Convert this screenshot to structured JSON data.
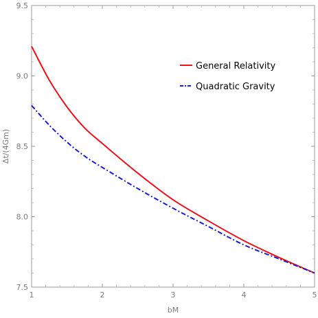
{
  "chart_data": {
    "type": "line",
    "title": "",
    "xlabel": "bM",
    "ylabel": "Δt/(4Gm)",
    "xlim": [
      1,
      5
    ],
    "ylim": [
      7.5,
      9.5
    ],
    "xticks": [
      1,
      2,
      3,
      4,
      5
    ],
    "yticks": [
      7.5,
      8.0,
      8.5,
      9.0,
      9.5
    ],
    "xtick_labels": [
      "1",
      "2",
      "3",
      "4",
      "5"
    ],
    "ytick_labels": [
      "7.5",
      "8.0",
      "8.5",
      "9.0",
      "9.5"
    ],
    "grid": false,
    "legend_position": "top-right",
    "series": [
      {
        "name": "General Relativity",
        "color": "#e8131b",
        "style": "solid",
        "x": [
          1.0,
          1.25,
          1.5,
          1.75,
          2.0,
          2.5,
          3.0,
          3.5,
          4.0,
          4.5,
          5.0
        ],
        "y": [
          9.21,
          8.97,
          8.78,
          8.63,
          8.52,
          8.31,
          8.12,
          7.97,
          7.83,
          7.71,
          7.6
        ]
      },
      {
        "name": "Quadratic Gravity",
        "color": "#1c1ccf",
        "style": "dashdot",
        "x": [
          1.0,
          1.25,
          1.5,
          1.75,
          2.0,
          2.5,
          3.0,
          3.5,
          4.0,
          4.5,
          5.0
        ],
        "y": [
          8.79,
          8.65,
          8.53,
          8.43,
          8.35,
          8.2,
          8.06,
          7.93,
          7.8,
          7.7,
          7.6
        ]
      }
    ]
  }
}
